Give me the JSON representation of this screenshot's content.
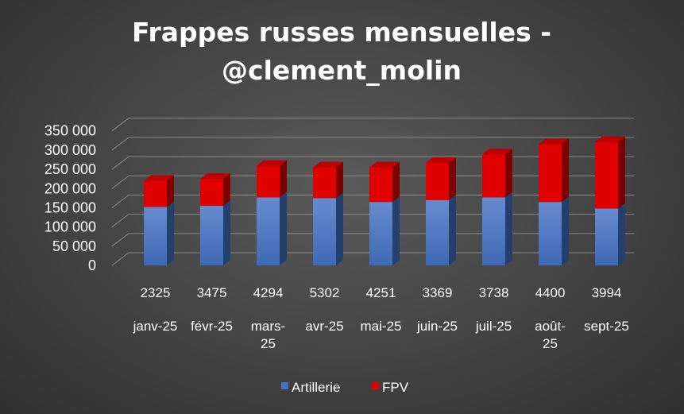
{
  "chart_data": {
    "type": "bar",
    "stacked": true,
    "title_lines": [
      "Frappes russes mensuelles -",
      "@clement_molin"
    ],
    "categories": [
      "2325",
      "3475",
      "4294",
      "5302",
      "4251",
      "3369",
      "3738",
      "4400",
      "3994"
    ],
    "category_sublabels": [
      [
        "janv-25"
      ],
      [
        "févr-25"
      ],
      [
        "mars-",
        "25"
      ],
      [
        "avr-25"
      ],
      [
        "mai-25"
      ],
      [
        "juin-25"
      ],
      [
        "juil-25"
      ],
      [
        "août-",
        "25"
      ],
      [
        "sept-25"
      ]
    ],
    "y_tick_labels": [
      "0",
      "50 000",
      "100 000",
      "150 000",
      "200 000",
      "250 000",
      "300 000",
      "350 000"
    ],
    "ylim": [
      0,
      350000
    ],
    "ystep": 50000,
    "series": [
      {
        "name": "Artillerie",
        "color": "#4472c4",
        "values": [
          152000,
          155000,
          177000,
          175000,
          165000,
          170000,
          177000,
          165000,
          148000
        ]
      },
      {
        "name": "FPV",
        "color": "#e00000",
        "values": [
          68000,
          70000,
          82000,
          80000,
          90000,
          97000,
          112000,
          150000,
          173000
        ]
      }
    ],
    "legend_position": "bottom"
  }
}
